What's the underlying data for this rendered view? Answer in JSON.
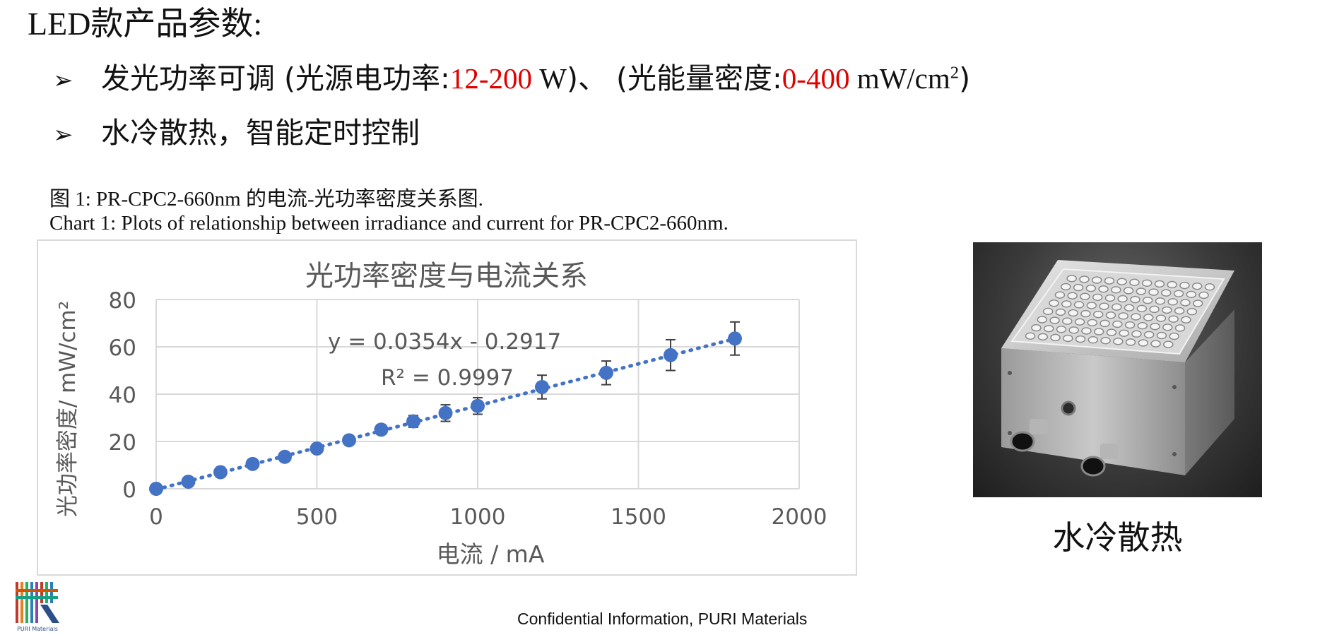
{
  "slide": {
    "title": "LED款产品参数:",
    "bullets": [
      {
        "marker": "➢",
        "text_a": "发光功率可调 (光源电功率:",
        "value_a": "12-200",
        "unit_a": " W",
        "text_b": ")、 (光能量密度:",
        "value_b": "0-400",
        "unit_b": " mW/cm",
        "unit_b_sup": "2",
        "text_c": ")"
      },
      {
        "marker": "➢",
        "text": "水冷散热，智能定时控制"
      }
    ],
    "caption_cn": "图 1:  PR-CPC2-660nm 的电流-光功率密度关系图.",
    "caption_en": "Chart 1:  Plots of relationship between irradiance and current for PR-CPC2-660nm.",
    "photo_caption": "水冷散热",
    "logo_text": "PURI Materials",
    "footer": "Confidential Information, PURI Materials"
  },
  "chart_data": {
    "type": "scatter",
    "title": "光功率密度与电流关系",
    "xlabel": "电流 / mA",
    "ylabel": "光功率密度/ mW/cm²",
    "xlim": [
      0,
      2000
    ],
    "ylim": [
      0,
      80
    ],
    "x_ticks": [
      0,
      500,
      1000,
      1500,
      2000
    ],
    "y_ticks": [
      0,
      20,
      40,
      60,
      80
    ],
    "grid": true,
    "legend": "none",
    "series": [
      {
        "x": [
          0,
          100,
          200,
          300,
          400,
          500,
          600,
          700,
          800,
          900,
          1000,
          1200,
          1400,
          1600,
          1800
        ],
        "y": [
          0,
          3,
          7,
          10.5,
          13.5,
          17,
          20.5,
          25,
          28.5,
          32,
          35,
          43,
          49,
          56.5,
          63.5
        ],
        "error": [
          0,
          0,
          0,
          1,
          1,
          1,
          1.5,
          2,
          2.5,
          3.5,
          3.5,
          5,
          5,
          6.5,
          7
        ],
        "color": "#4472c4"
      }
    ],
    "trendline": {
      "type": "linear",
      "slope": 0.0354,
      "intercept": -0.2917,
      "equation": "y = 0.0354x - 0.2917",
      "r_squared": "R² = 0.9997",
      "color": "#4472c4",
      "style": "dotted"
    }
  }
}
